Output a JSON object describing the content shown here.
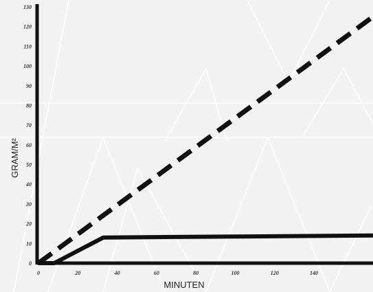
{
  "chart_data": {
    "type": "line",
    "title": "",
    "xlabel": "MINUTEN",
    "ylabel": "GRAM/M²",
    "x_ticks": [
      "0",
      "20",
      "40",
      "60",
      "80",
      "100",
      "120",
      "140"
    ],
    "y_ticks": [
      "0",
      "10",
      "20",
      "30",
      "40",
      "50",
      "60",
      "70",
      "80",
      "90",
      "100",
      "110",
      "120",
      "130"
    ],
    "xlim": [
      0,
      170
    ],
    "ylim": [
      0,
      130
    ],
    "grid": false,
    "legend": "none",
    "series": [
      {
        "style": "dashed",
        "color": "#111111",
        "x": [
          0,
          170
        ],
        "y": [
          0,
          125
        ]
      },
      {
        "style": "solid",
        "color": "#111111",
        "x": [
          0,
          8,
          33,
          170
        ],
        "y": [
          0,
          0,
          13,
          14
        ]
      }
    ]
  }
}
